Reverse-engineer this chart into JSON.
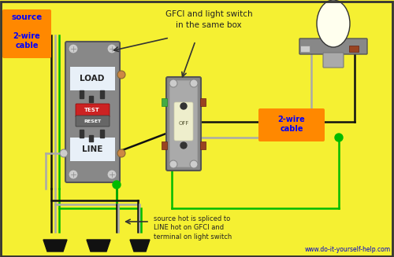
{
  "background_color": "#f5f032",
  "border_color": "#333333",
  "website": "www.do-it-yourself-help.com",
  "website_color": "#0000cc",
  "source_label": "source",
  "source_color": "#0000ff",
  "cable_label": "2-wire\ncable",
  "cable_box_color": "#ff8800",
  "cable_text_color": "#0000ff",
  "annotation1": "GFCI and light switch\nin the same box",
  "annotation2": "source hot is spliced to\nLINE hot on GFCI and\nterminal on light switch",
  "wire_black": "#111111",
  "wire_white": "#aaaaaa",
  "wire_green": "#007700",
  "wire_bright_green": "#00bb00",
  "gfci_color": "#888888",
  "gfci_face": "#dddddd",
  "switch_color": "#888888",
  "switch_face": "#cccccc",
  "lamp_base_color": "#888888",
  "lamp_socket_color": "#aa8855",
  "bulb_color": "#ffffee"
}
